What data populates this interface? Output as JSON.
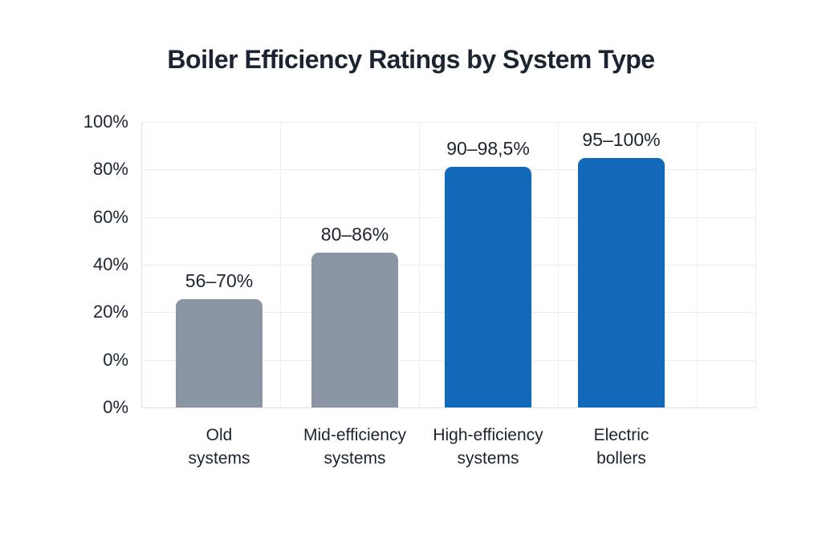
{
  "page": {
    "background": "#ffffff"
  },
  "chart_data": {
    "type": "bar",
    "title": "Boiler Efficiency Ratings by System Type",
    "xlabel": "",
    "ylabel": "",
    "ylim": [
      0,
      100
    ],
    "grid": true,
    "legend": false,
    "categories": [
      {
        "name": "Old systems",
        "line1": "Old",
        "line2": "systems"
      },
      {
        "name": "Mid-efficiency systems",
        "line1": "Mid-efficiency",
        "line2": "systems"
      },
      {
        "name": "High-efficiency systems",
        "line1": "High-efficiency",
        "line2": "systems"
      },
      {
        "name": "Electric bollers",
        "line1": "Electric",
        "line2": "bollers"
      }
    ],
    "bars": [
      {
        "label": "56–70%",
        "range_min": 56,
        "range_max": 70,
        "color": "#8b95a3",
        "drawn_height_pct": 37.9
      },
      {
        "label": "80–86%",
        "range_min": 80,
        "range_max": 86,
        "color": "#8b95a3",
        "drawn_height_pct": 54.2
      },
      {
        "label": "90–98,5%",
        "range_min": 90,
        "range_max": 98.5,
        "color": "#1269ba",
        "drawn_height_pct": 84.3
      },
      {
        "label": "95–100%",
        "range_min": 95,
        "range_max": 100,
        "color": "#1269ba",
        "drawn_height_pct": 87.4
      }
    ],
    "y_axis": {
      "tick_labels": [
        "100%",
        "80%",
        "60%",
        "40%",
        "20%",
        "0%",
        "0%"
      ]
    },
    "colors": {
      "gray_bar": "#8b95a3",
      "blue_bar": "#1269ba",
      "grid": "#e9edf1",
      "axis": "#dde2e8",
      "text": "#1b2430"
    }
  }
}
